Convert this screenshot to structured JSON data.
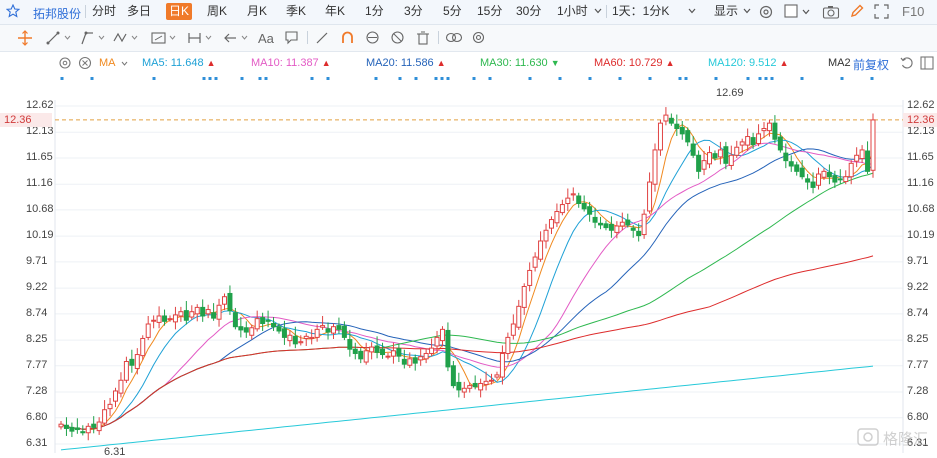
{
  "stock": {
    "name": "拓邦股份"
  },
  "timeframes": [
    "分时",
    "多日",
    "日K",
    "周K",
    "月K",
    "季K",
    "年K",
    "1分",
    "3分",
    "5分",
    "15分",
    "30分",
    "1小时"
  ],
  "active_timeframe": "日K",
  "range_select": "1天：1分K",
  "display_label": "显示",
  "f10_label": "F10",
  "drawing_toolbar": {
    "text_tool_label": "Aa"
  },
  "indicator": {
    "name": "MA"
  },
  "ma_lines": [
    {
      "label": "MA5: 11.648",
      "color": "#f0891f",
      "direction": "▲"
    },
    {
      "label": "MA10: 11.387",
      "color": "#1fa1d6",
      "direction": "▲"
    },
    {
      "label": "MA20: 11.586",
      "color": "#e35bc5",
      "direction": "▲"
    },
    {
      "label": "MA30: 11.630",
      "color": "#2563b9",
      "direction": "▼"
    },
    {
      "label": "MA60: 10.729",
      "color": "#2eb84f",
      "direction": "▲"
    },
    {
      "label": "MA120: 9.512",
      "color": "#dd2c2c",
      "direction": "▲"
    },
    {
      "label": "MA2",
      "color": "#27c9d9",
      "direction": ""
    }
  ],
  "adjust_label": "前复权",
  "y_axis": [
    "12.62",
    "12.13",
    "11.65",
    "11.16",
    "10.68",
    "10.19",
    "9.71",
    "9.22",
    "8.74",
    "8.25",
    "7.77",
    "7.28",
    "6.80",
    "6.31"
  ],
  "current_price": "12.36",
  "high_marker": "12.69",
  "low_marker": "6.31",
  "watermark": "格隆汇",
  "colors": {
    "up": "#e04343",
    "down": "#20a14a",
    "active_tab": "#f07a2a",
    "link": "#2f6fd8"
  },
  "chart_data": {
    "type": "candlestick",
    "y_range": [
      6.31,
      12.62
    ],
    "close": [
      6.68,
      6.6,
      6.55,
      6.58,
      6.52,
      6.64,
      6.62,
      6.72,
      6.95,
      7.05,
      7.3,
      7.5,
      7.85,
      7.78,
      7.98,
      8.28,
      8.55,
      8.62,
      8.7,
      8.6,
      8.65,
      8.72,
      8.78,
      8.62,
      8.78,
      8.86,
      8.7,
      8.82,
      8.66,
      8.9,
      9.06,
      8.8,
      8.5,
      8.44,
      8.4,
      8.48,
      8.65,
      8.56,
      8.6,
      8.5,
      8.42,
      8.3,
      8.34,
      8.18,
      8.22,
      8.32,
      8.3,
      8.45,
      8.52,
      8.4,
      8.5,
      8.45,
      8.3,
      8.08,
      8.0,
      7.9,
      8.05,
      8.12,
      8.02,
      7.98,
      7.95,
      8.05,
      7.95,
      7.8,
      7.9,
      7.82,
      7.94,
      8.0,
      8.1,
      8.3,
      8.45,
      7.75,
      7.4,
      7.32,
      7.35,
      7.4,
      7.38,
      7.44,
      7.48,
      7.5,
      7.6,
      8.0,
      8.3,
      8.55,
      8.88,
      9.25,
      9.55,
      9.8,
      10.1,
      10.3,
      10.5,
      10.65,
      10.78,
      10.9,
      10.98,
      10.8,
      10.7,
      10.6,
      10.45,
      10.4,
      10.35,
      10.3,
      10.38,
      10.45,
      10.4,
      10.3,
      10.2,
      10.6,
      11.2,
      11.8,
      12.3,
      12.45,
      12.3,
      12.2,
      12.1,
      11.95,
      11.7,
      11.4,
      11.6,
      11.75,
      11.65,
      11.8,
      11.55,
      11.7,
      11.85,
      11.95,
      12.05,
      11.9,
      12.1,
      12.2,
      12.3,
      12.0,
      11.8,
      11.6,
      11.5,
      11.4,
      11.3,
      11.2,
      11.1,
      11.35,
      11.4,
      11.3,
      11.2,
      11.25,
      11.3,
      11.55,
      11.7,
      11.8,
      11.4,
      12.36
    ]
  }
}
